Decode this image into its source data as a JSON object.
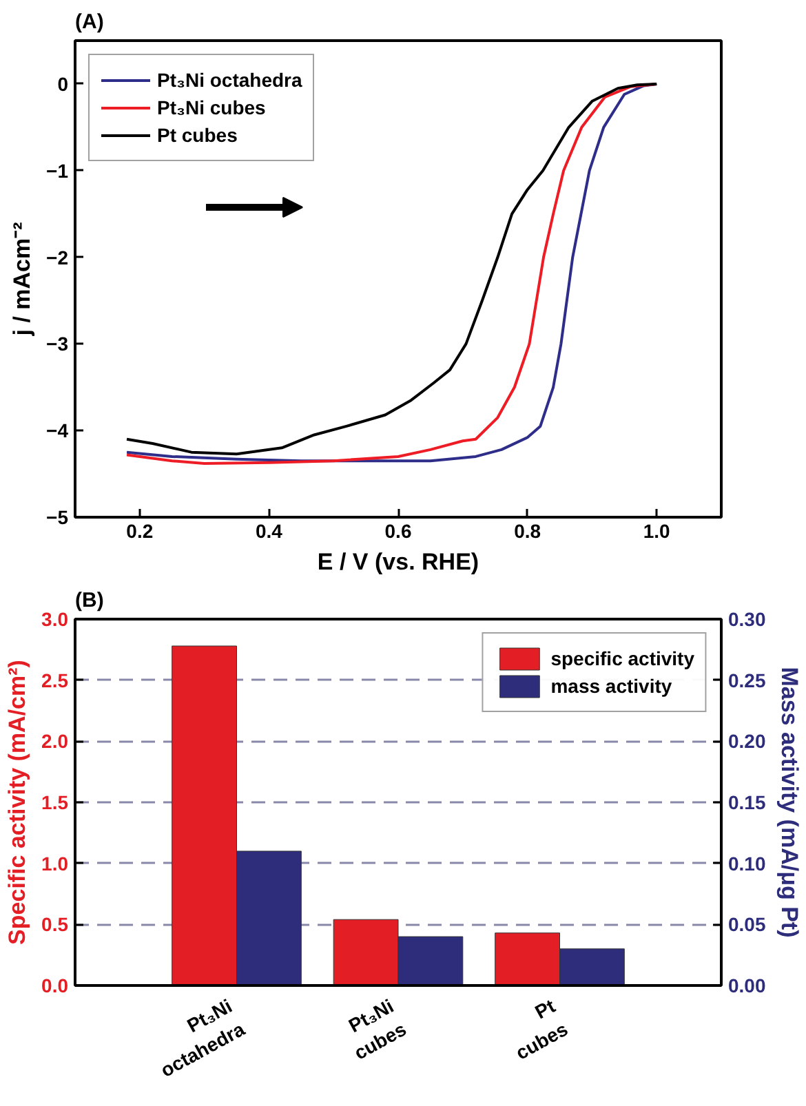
{
  "chart_data": [
    {
      "type": "line",
      "title": "(A)",
      "xlabel": "E / V (vs. RHE)",
      "ylabel": "j / mAcm⁻²",
      "xlim": [
        0.1,
        1.1
      ],
      "xticks": [
        0.2,
        0.4,
        0.6,
        0.8,
        {
          "value": 1.0,
          "label": "1.0"
        }
      ],
      "ylim": [
        -5,
        0.5
      ],
      "yticks": [
        0,
        -1,
        -2,
        -3,
        -4,
        -5
      ],
      "legend": "top left",
      "line_style": "solid",
      "series": [
        {
          "name": "Pt₃Ni octahedra",
          "color": "#2e2d8a",
          "x": [
            0.18,
            0.25,
            0.35,
            0.45,
            0.55,
            0.65,
            0.72,
            0.76,
            0.8,
            0.82,
            0.84,
            0.852,
            0.87,
            0.896,
            0.918,
            0.95,
            0.98,
            1.0
          ],
          "values": [
            -4.25,
            -4.3,
            -4.33,
            -4.35,
            -4.35,
            -4.35,
            -4.3,
            -4.22,
            -4.08,
            -3.95,
            -3.5,
            -3.0,
            -2.0,
            -1.0,
            -0.5,
            -0.12,
            -0.02,
            0
          ]
        },
        {
          "name": "Pt₃Ni cubes",
          "color": "#ee1c25",
          "x": [
            0.18,
            0.25,
            0.3,
            0.4,
            0.5,
            0.6,
            0.65,
            0.7,
            0.72,
            0.754,
            0.78,
            0.803,
            0.825,
            0.84,
            0.856,
            0.884,
            0.92,
            0.96,
            1.0
          ],
          "values": [
            -4.28,
            -4.35,
            -4.38,
            -4.37,
            -4.35,
            -4.3,
            -4.22,
            -4.12,
            -4.1,
            -3.85,
            -3.5,
            -3.0,
            -2.0,
            -1.5,
            -1.0,
            -0.5,
            -0.15,
            -0.03,
            0
          ]
        },
        {
          "name": "Pt cubes",
          "color": "#000000",
          "x": [
            0.18,
            0.22,
            0.28,
            0.35,
            0.42,
            0.47,
            0.52,
            0.58,
            0.62,
            0.655,
            0.68,
            0.705,
            0.73,
            0.754,
            0.776,
            0.8,
            0.824,
            0.864,
            0.9,
            0.94,
            0.97,
            1.0
          ],
          "values": [
            -4.1,
            -4.15,
            -4.25,
            -4.27,
            -4.2,
            -4.05,
            -3.95,
            -3.82,
            -3.65,
            -3.45,
            -3.3,
            -3.0,
            -2.5,
            -2.0,
            -1.5,
            -1.22,
            -1.0,
            -0.5,
            -0.2,
            -0.05,
            -0.01,
            0
          ]
        }
      ]
    },
    {
      "type": "bar",
      "title": "(B)",
      "ylabel": "Specific activity (mA/cm²)",
      "y2label": "Mass activity (mA/μg Pt)",
      "categories": [
        "Pt₃Ni\noctahedra",
        "Pt₃Ni\ncubes",
        "Pt\ncubes"
      ],
      "ylim": [
        0,
        3.0
      ],
      "yticks": [
        {
          "value": 0,
          "label": "0.0"
        },
        0.5,
        {
          "value": 1.0,
          "label": "1.0"
        },
        1.5,
        {
          "value": 2.0,
          "label": "2.0"
        },
        2.5,
        {
          "value": 3.0,
          "label": "3.0"
        }
      ],
      "y2lim": [
        0,
        0.3
      ],
      "y2ticks": [
        {
          "value": 0,
          "label": "0.00"
        },
        0.05,
        {
          "value": 0.1,
          "label": "0.10"
        },
        0.15,
        {
          "value": 0.2,
          "label": "0.20"
        },
        0.25,
        {
          "value": 0.3,
          "label": "0.30"
        }
      ],
      "grid": "y",
      "legend": "top right",
      "series": [
        {
          "name": "specific activity",
          "color": "#e31e24",
          "values": [
            2.78,
            0.54,
            0.43
          ]
        },
        {
          "name": "mass activity",
          "color": "#2e2d7c",
          "axis": "y2",
          "values": [
            0.11,
            0.04,
            0.03
          ]
        }
      ]
    }
  ]
}
